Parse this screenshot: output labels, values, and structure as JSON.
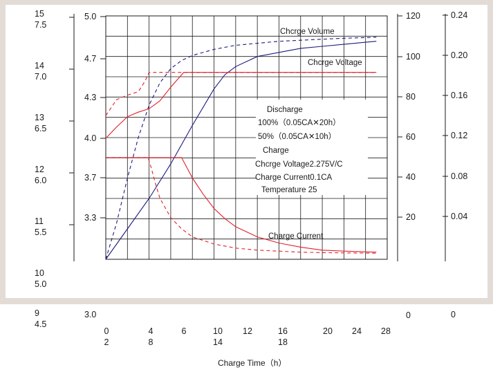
{
  "chart_data": {
    "type": "line",
    "xlabel": "Charge Time（h）",
    "x_ticks_row1": [
      "0",
      "4",
      "6",
      "10",
      "12",
      "16",
      "20",
      "24",
      "28"
    ],
    "x_ticks_row2": [
      "2",
      "8",
      "14",
      "18"
    ],
    "x_range": [
      0,
      26
    ],
    "grid": true,
    "axes": {
      "outer_left": {
        "ticks": [
          {
            "a": "15",
            "b": "7.5"
          },
          {
            "a": "14",
            "b": "7.0"
          },
          {
            "a": "13",
            "b": "6.5"
          },
          {
            "a": "12",
            "b": "6.0"
          },
          {
            "a": "11",
            "b": "5.5"
          },
          {
            "a": "10",
            "b": "5.0"
          },
          {
            "a": "9",
            "b": "4.5"
          }
        ]
      },
      "voltage": {
        "ticks": [
          "5.0",
          "4.7",
          "4.3",
          "4.0",
          "3.7",
          "3.3",
          "3.0"
        ],
        "range": [
          3.0,
          5.0
        ]
      },
      "volume": {
        "ticks": [
          "120",
          "100",
          "80",
          "60",
          "40",
          "20",
          "0"
        ],
        "range": [
          0,
          120
        ]
      },
      "current": {
        "ticks": [
          "0.24",
          "0.20",
          "0.16",
          "0.12",
          "0.08",
          "0.04",
          "0"
        ],
        "range": [
          0,
          0.24
        ]
      }
    },
    "series": [
      {
        "name": "Chcrge Volume",
        "axis": "volume",
        "style": "solid",
        "color": "#1a1a80",
        "x": [
          0,
          2,
          4,
          6,
          8,
          10,
          11,
          12,
          14,
          16,
          18,
          20,
          22,
          24,
          25
        ],
        "y": [
          0,
          15,
          30,
          47,
          66,
          84,
          91,
          95,
          100,
          102,
          104,
          105,
          106,
          107,
          107.5
        ]
      },
      {
        "name": "",
        "axis": "volume",
        "style": "dashed",
        "color": "#1a1a80",
        "x": [
          0,
          1,
          2,
          3,
          4,
          5,
          6,
          7,
          8,
          10,
          12,
          14,
          16,
          18,
          20,
          22,
          24,
          25
        ],
        "y": [
          0,
          18,
          40,
          60,
          76,
          87,
          94,
          98,
          100.5,
          103.5,
          105.5,
          106.5,
          107.5,
          108,
          108.5,
          109,
          109.3,
          109.5
        ]
      },
      {
        "name": "Chcrge Voltage",
        "axis": "voltage",
        "style": "solid",
        "color": "#e0202a",
        "x": [
          0,
          1,
          2,
          3,
          4,
          5,
          6,
          7.2,
          25
        ],
        "y": [
          4.0,
          4.1,
          4.19,
          4.23,
          4.26,
          4.33,
          4.45,
          4.58,
          4.58
        ]
      },
      {
        "name": "",
        "axis": "voltage",
        "style": "dashed",
        "color": "#e0202a",
        "x": [
          0,
          0.5,
          1,
          2,
          3,
          3.6,
          4,
          25
        ],
        "y": [
          4.2,
          4.27,
          4.34,
          4.38,
          4.41,
          4.5,
          4.58,
          4.58
        ]
      },
      {
        "name": "Charge Current",
        "axis": "current",
        "style": "solid",
        "color": "#e0202a",
        "x": [
          0,
          7.0,
          7.3,
          8,
          9,
          10,
          11,
          12,
          14,
          16,
          18,
          20,
          22,
          25
        ],
        "y": [
          0.1,
          0.1,
          0.094,
          0.08,
          0.064,
          0.05,
          0.04,
          0.032,
          0.022,
          0.016,
          0.012,
          0.009,
          0.008,
          0.007
        ]
      },
      {
        "name": "",
        "axis": "current",
        "style": "dashed",
        "color": "#e0202a",
        "x": [
          0,
          3.9,
          4.2,
          4.6,
          5,
          6,
          7,
          8,
          10,
          12,
          14,
          16,
          18,
          20,
          25
        ],
        "y": [
          0.1,
          0.1,
          0.09,
          0.074,
          0.06,
          0.041,
          0.03,
          0.022,
          0.015,
          0.011,
          0.009,
          0.008,
          0.007,
          0.0065,
          0.006
        ]
      }
    ],
    "annotations": {
      "title": "Discharge",
      "lines": [
        "100%（0.05CA✕20h）",
        "50%（0.05CA✕10h）",
        "Charge",
        "Chcrge Voltage2.275V/C",
        "Charge Current0.1CA",
        "Temperature 25"
      ]
    },
    "colors": {
      "frame": "#e3dcd6",
      "red": "#e0202a",
      "blue": "#1a1a80",
      "ink": "#1a1a1a"
    }
  }
}
